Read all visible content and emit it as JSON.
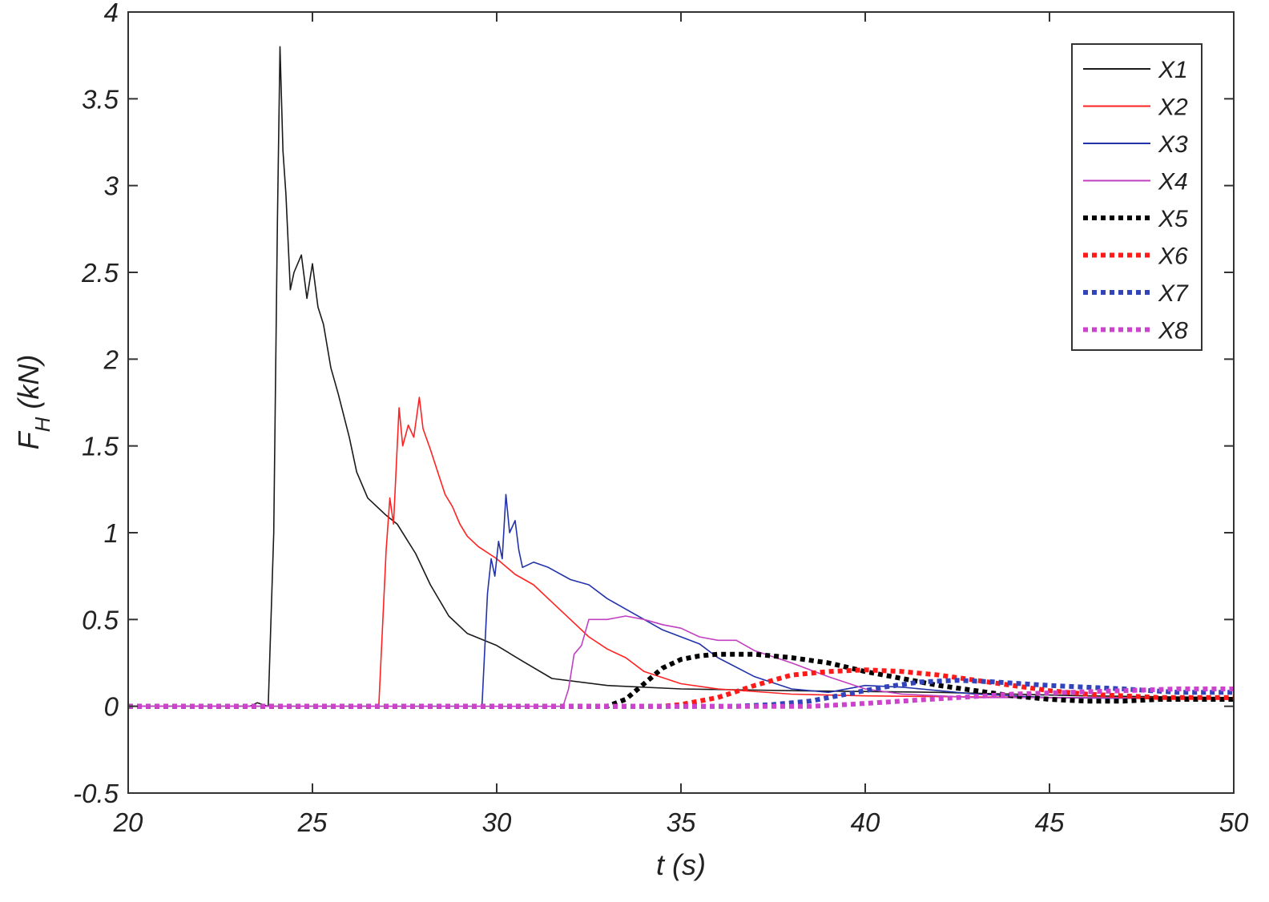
{
  "chart_data": {
    "type": "line",
    "xlabel": "t (s)",
    "ylabel_main": "F",
    "ylabel_sub": "H",
    "ylabel_unit": "(kN)",
    "xlim": [
      20,
      50
    ],
    "ylim": [
      -0.5,
      4
    ],
    "x_ticks": [
      20,
      25,
      30,
      35,
      40,
      45,
      50
    ],
    "y_ticks": [
      -0.5,
      0,
      0.5,
      1,
      1.5,
      2,
      2.5,
      3,
      3.5,
      4
    ],
    "x_tick_labels": [
      "20",
      "25",
      "30",
      "35",
      "40",
      "45",
      "50"
    ],
    "y_tick_labels": [
      "-0.5",
      "0",
      "0.5",
      "1",
      "1.5",
      "2",
      "2.5",
      "3",
      "3.5",
      "4"
    ],
    "grid": false,
    "legend_position": "top-right",
    "series": [
      {
        "name": "X1",
        "color": "#1a1a1a",
        "style": "solid",
        "points": [
          [
            20,
            0
          ],
          [
            23.3,
            0
          ],
          [
            23.5,
            0.02
          ],
          [
            23.8,
            0
          ],
          [
            23.95,
            1.0
          ],
          [
            24.05,
            2.8
          ],
          [
            24.12,
            3.8
          ],
          [
            24.2,
            3.2
          ],
          [
            24.28,
            2.95
          ],
          [
            24.4,
            2.4
          ],
          [
            24.5,
            2.5
          ],
          [
            24.7,
            2.6
          ],
          [
            24.85,
            2.35
          ],
          [
            25.0,
            2.55
          ],
          [
            25.15,
            2.3
          ],
          [
            25.3,
            2.2
          ],
          [
            25.5,
            1.95
          ],
          [
            25.7,
            1.8
          ],
          [
            26.0,
            1.55
          ],
          [
            26.2,
            1.35
          ],
          [
            26.5,
            1.2
          ],
          [
            27.0,
            1.1
          ],
          [
            27.3,
            1.05
          ],
          [
            27.8,
            0.88
          ],
          [
            28.2,
            0.7
          ],
          [
            28.7,
            0.52
          ],
          [
            29.2,
            0.42
          ],
          [
            30.0,
            0.35
          ],
          [
            30.7,
            0.26
          ],
          [
            31.5,
            0.16
          ],
          [
            33.0,
            0.12
          ],
          [
            35.0,
            0.1
          ],
          [
            38.0,
            0.09
          ],
          [
            42.0,
            0.08
          ],
          [
            46.0,
            0.06
          ],
          [
            50.0,
            0.05
          ]
        ]
      },
      {
        "name": "X2",
        "color": "#ff2222",
        "style": "solid",
        "points": [
          [
            20,
            0
          ],
          [
            26.8,
            0
          ],
          [
            27.0,
            0.9
          ],
          [
            27.1,
            1.2
          ],
          [
            27.2,
            1.05
          ],
          [
            27.35,
            1.72
          ],
          [
            27.45,
            1.5
          ],
          [
            27.6,
            1.62
          ],
          [
            27.75,
            1.55
          ],
          [
            27.9,
            1.78
          ],
          [
            28.0,
            1.6
          ],
          [
            28.2,
            1.48
          ],
          [
            28.4,
            1.35
          ],
          [
            28.6,
            1.22
          ],
          [
            28.8,
            1.15
          ],
          [
            29.0,
            1.05
          ],
          [
            29.2,
            0.98
          ],
          [
            29.5,
            0.92
          ],
          [
            30.0,
            0.85
          ],
          [
            30.5,
            0.76
          ],
          [
            31.0,
            0.7
          ],
          [
            31.5,
            0.6
          ],
          [
            32.0,
            0.5
          ],
          [
            32.5,
            0.4
          ],
          [
            33.0,
            0.33
          ],
          [
            33.5,
            0.28
          ],
          [
            34.0,
            0.2
          ],
          [
            35.0,
            0.13
          ],
          [
            36.0,
            0.1
          ],
          [
            38.0,
            0.07
          ],
          [
            40.0,
            0.06
          ],
          [
            45.0,
            0.05
          ],
          [
            50.0,
            0.05
          ]
        ]
      },
      {
        "name": "X3",
        "color": "#2233aa",
        "style": "solid",
        "points": [
          [
            20,
            0
          ],
          [
            29.6,
            0
          ],
          [
            29.75,
            0.65
          ],
          [
            29.85,
            0.85
          ],
          [
            29.95,
            0.75
          ],
          [
            30.05,
            0.95
          ],
          [
            30.15,
            0.85
          ],
          [
            30.25,
            1.22
          ],
          [
            30.35,
            1.0
          ],
          [
            30.5,
            1.07
          ],
          [
            30.6,
            0.9
          ],
          [
            30.7,
            0.8
          ],
          [
            31.0,
            0.83
          ],
          [
            31.4,
            0.8
          ],
          [
            32.0,
            0.73
          ],
          [
            32.5,
            0.7
          ],
          [
            33.0,
            0.62
          ],
          [
            33.5,
            0.56
          ],
          [
            34.0,
            0.5
          ],
          [
            34.5,
            0.44
          ],
          [
            35.0,
            0.4
          ],
          [
            35.5,
            0.36
          ],
          [
            36.0,
            0.28
          ],
          [
            37.0,
            0.17
          ],
          [
            38.0,
            0.1
          ],
          [
            39.0,
            0.08
          ],
          [
            40.0,
            0.12
          ],
          [
            41.0,
            0.11
          ],
          [
            43.0,
            0.07
          ],
          [
            45.0,
            0.05
          ],
          [
            50.0,
            0.04
          ]
        ]
      },
      {
        "name": "X4",
        "color": "#c040c0",
        "style": "solid",
        "points": [
          [
            20,
            0
          ],
          [
            31.8,
            0
          ],
          [
            31.95,
            0.1
          ],
          [
            32.1,
            0.3
          ],
          [
            32.3,
            0.35
          ],
          [
            32.5,
            0.5
          ],
          [
            33.0,
            0.5
          ],
          [
            33.5,
            0.52
          ],
          [
            34.0,
            0.5
          ],
          [
            34.5,
            0.47
          ],
          [
            35.0,
            0.45
          ],
          [
            35.5,
            0.4
          ],
          [
            36.0,
            0.38
          ],
          [
            36.5,
            0.38
          ],
          [
            37.0,
            0.32
          ],
          [
            38.0,
            0.25
          ],
          [
            39.0,
            0.17
          ],
          [
            40.0,
            0.1
          ],
          [
            41.0,
            0.07
          ],
          [
            43.0,
            0.05
          ],
          [
            46.0,
            0.05
          ],
          [
            50.0,
            0.04
          ]
        ]
      },
      {
        "name": "X5",
        "color": "#000000",
        "style": "dotted",
        "points": [
          [
            20,
            0
          ],
          [
            33.0,
            0
          ],
          [
            33.5,
            0.04
          ],
          [
            34.0,
            0.13
          ],
          [
            34.5,
            0.22
          ],
          [
            35.0,
            0.27
          ],
          [
            35.5,
            0.29
          ],
          [
            36.0,
            0.3
          ],
          [
            37.0,
            0.3
          ],
          [
            38.0,
            0.28
          ],
          [
            39.0,
            0.25
          ],
          [
            40.0,
            0.2
          ],
          [
            41.0,
            0.16
          ],
          [
            42.0,
            0.12
          ],
          [
            43.0,
            0.09
          ],
          [
            44.0,
            0.06
          ],
          [
            45.0,
            0.04
          ],
          [
            46.0,
            0.03
          ],
          [
            47.0,
            0.03
          ],
          [
            48.0,
            0.04
          ],
          [
            49.0,
            0.04
          ],
          [
            50.0,
            0.04
          ]
        ]
      },
      {
        "name": "X6",
        "color": "#ff1a1a",
        "style": "dotted",
        "points": [
          [
            20,
            0
          ],
          [
            34.5,
            0
          ],
          [
            35.0,
            0.01
          ],
          [
            36.0,
            0.05
          ],
          [
            37.0,
            0.12
          ],
          [
            38.0,
            0.18
          ],
          [
            39.0,
            0.2
          ],
          [
            40.0,
            0.21
          ],
          [
            41.0,
            0.2
          ],
          [
            42.0,
            0.18
          ],
          [
            43.0,
            0.15
          ],
          [
            44.0,
            0.12
          ],
          [
            45.0,
            0.09
          ],
          [
            46.0,
            0.07
          ],
          [
            48.0,
            0.05
          ],
          [
            50.0,
            0.05
          ]
        ]
      },
      {
        "name": "X7",
        "color": "#3344bb",
        "style": "dotted",
        "points": [
          [
            20,
            0
          ],
          [
            36.5,
            0
          ],
          [
            37.5,
            0.01
          ],
          [
            38.5,
            0.03
          ],
          [
            39.5,
            0.07
          ],
          [
            40.5,
            0.11
          ],
          [
            41.5,
            0.14
          ],
          [
            42.5,
            0.15
          ],
          [
            43.5,
            0.14
          ],
          [
            45.0,
            0.12
          ],
          [
            47.0,
            0.1
          ],
          [
            48.5,
            0.08
          ],
          [
            50.0,
            0.08
          ]
        ]
      },
      {
        "name": "X8",
        "color": "#cc44cc",
        "style": "dotted",
        "points": [
          [
            20,
            0
          ],
          [
            38.5,
            0
          ],
          [
            39.5,
            0.01
          ],
          [
            41.0,
            0.03
          ],
          [
            42.5,
            0.05
          ],
          [
            44.0,
            0.07
          ],
          [
            45.5,
            0.08
          ],
          [
            47.0,
            0.09
          ],
          [
            48.5,
            0.1
          ],
          [
            50.0,
            0.1
          ]
        ]
      }
    ]
  }
}
